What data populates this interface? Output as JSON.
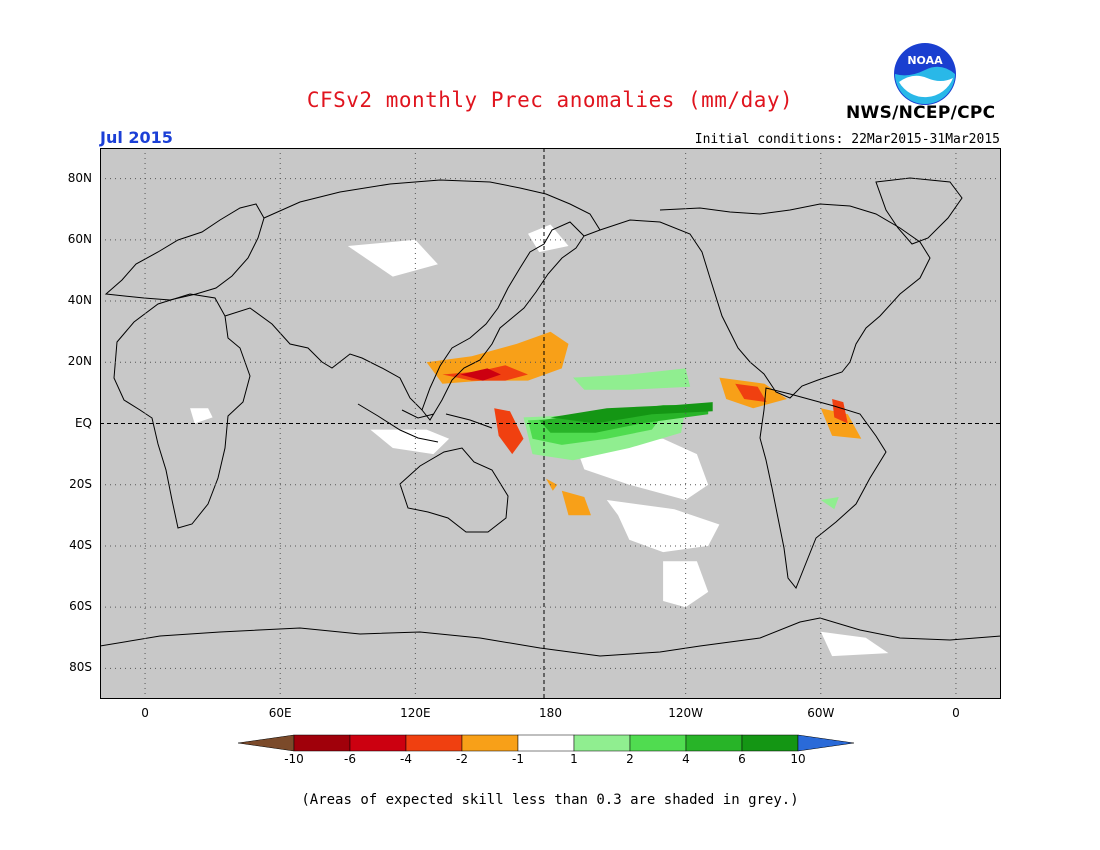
{
  "header": {
    "title": "CFSv2 monthly Prec anomalies (mm/day)",
    "agency": "NWS/NCEP/CPC",
    "logo_text": "NOAA",
    "month": "Jul 2015",
    "initial_conditions": "Initial conditions: 22Mar2015-31Mar2015"
  },
  "axes": {
    "lat_labels": [
      "80N",
      "60N",
      "40N",
      "20N",
      "EQ",
      "20S",
      "40S",
      "60S",
      "80S"
    ],
    "lat_values": [
      80,
      60,
      40,
      20,
      0,
      -20,
      -40,
      -60,
      -80
    ],
    "lon_labels": [
      "0",
      "60E",
      "120E",
      "180",
      "120W",
      "60W",
      "0"
    ],
    "lon_values": [
      0,
      60,
      120,
      180,
      240,
      300,
      360
    ]
  },
  "colorbar": {
    "labels": [
      "-10",
      "-6",
      "-4",
      "-2",
      "-1",
      "1",
      "2",
      "4",
      "6",
      "10"
    ],
    "colors": [
      "#7b4a2a",
      "#a0000a",
      "#cc0010",
      "#f04010",
      "#f8a018",
      "#ffffff",
      "#90ee90",
      "#50dc50",
      "#28b428",
      "#149614",
      "#2a6ad8"
    ]
  },
  "map_colors": {
    "grey_mask": "#c8c8c8",
    "white_neutral": "#ffffff",
    "coast": "#000000",
    "dry_strong": "#cc0010",
    "dry_mod": "#f04010",
    "dry_weak": "#f8a018",
    "wet_weak": "#90ee90",
    "wet_mod": "#50dc50",
    "wet_strong": "#28b428",
    "wet_vstrong": "#149614"
  },
  "footnote": "(Areas of expected skill less than 0.3 are shaded in grey.)"
}
